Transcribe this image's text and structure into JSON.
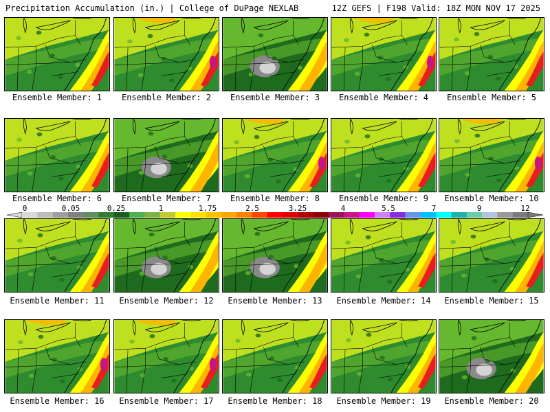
{
  "header": {
    "title_left": "Precipitation Accumulation (in.) | College of DuPage NEXLAB",
    "title_right": "12Z GEFS | F198 Valid: 18Z MON NOV 17 2025"
  },
  "members": [
    {
      "label": "Ensemble Member: 1",
      "variant": "normal"
    },
    {
      "label": "Ensemble Member: 2",
      "variant": "wet"
    },
    {
      "label": "Ensemble Member: 3",
      "variant": "dry"
    },
    {
      "label": "Ensemble Member: 4",
      "variant": "wet"
    },
    {
      "label": "Ensemble Member: 5",
      "variant": "normal"
    },
    {
      "label": "Ensemble Member: 6",
      "variant": "normal"
    },
    {
      "label": "Ensemble Member: 7",
      "variant": "dry"
    },
    {
      "label": "Ensemble Member: 8",
      "variant": "wet"
    },
    {
      "label": "Ensemble Member: 9",
      "variant": "normal"
    },
    {
      "label": "Ensemble Member: 10",
      "variant": "wet"
    },
    {
      "label": "Ensemble Member: 11",
      "variant": "normal"
    },
    {
      "label": "Ensemble Member: 12",
      "variant": "dry"
    },
    {
      "label": "Ensemble Member: 13",
      "variant": "dry"
    },
    {
      "label": "Ensemble Member: 14",
      "variant": "normal"
    },
    {
      "label": "Ensemble Member: 15",
      "variant": "normal"
    },
    {
      "label": "Ensemble Member: 16",
      "variant": "wet"
    },
    {
      "label": "Ensemble Member: 17",
      "variant": "wet"
    },
    {
      "label": "Ensemble Member: 18",
      "variant": "normal"
    },
    {
      "label": "Ensemble Member: 19",
      "variant": "normal"
    },
    {
      "label": "Ensemble Member: 20",
      "variant": "dry"
    }
  ],
  "legend": {
    "ticks": [
      "0",
      "0.05",
      "0.25",
      "1",
      "1.75",
      "2.5",
      "3.25",
      "4",
      "5.5",
      "7",
      "9",
      "12"
    ],
    "colors": [
      "#d9d9d9",
      "#bdbdbd",
      "#9e9e9e",
      "#7f7f7f",
      "#5e8f5e",
      "#2e7d32",
      "#1b5e20",
      "#4caf50",
      "#7cb342",
      "#c0ca33",
      "#ffff00",
      "#ffe000",
      "#ffc000",
      "#ffa500",
      "#ff7f00",
      "#ff4500",
      "#ff0000",
      "#e00000",
      "#b00000",
      "#8b0000",
      "#9b1458",
      "#c71585",
      "#ff00ff",
      "#d080ff",
      "#8a2be2",
      "#6495ed",
      "#00bfff",
      "#00ffff",
      "#20b2aa",
      "#66cdaa",
      "#b0c4de",
      "#999999",
      "#7a7a7a"
    ]
  },
  "palette": {
    "green": "#2e8b2e",
    "dark_green": "#1e6b1e",
    "light_green": "#66b82e",
    "yellow_green": "#bfe01e",
    "yellow": "#ffff00",
    "orange": "#ffb400",
    "red": "#e81e1e",
    "dark_red": "#a00000",
    "magenta": "#c71585",
    "gray": "#8a8a8a",
    "light_gray": "#d4d4d4",
    "white": "#f4f4f4"
  }
}
